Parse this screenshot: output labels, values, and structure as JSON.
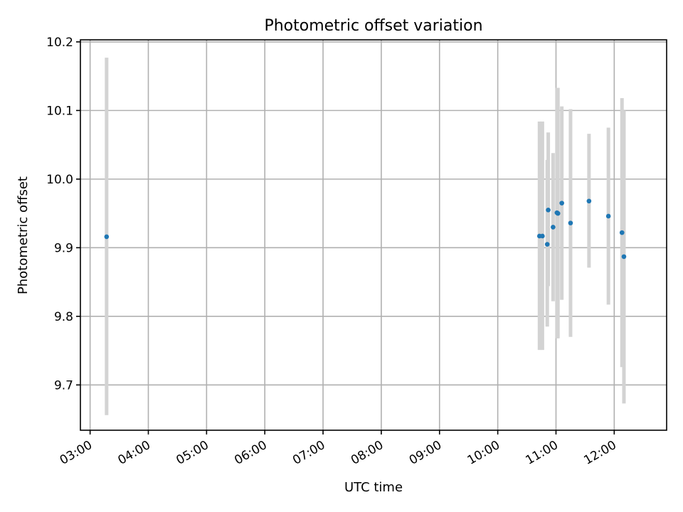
{
  "chart_data": {
    "type": "scatter",
    "title": "Photometric offset variation",
    "xlabel": "UTC time",
    "ylabel": "Photometric offset",
    "x_ticks": [
      "03:00",
      "04:00",
      "05:00",
      "06:00",
      "07:00",
      "08:00",
      "09:00",
      "10:00",
      "11:00",
      "12:00"
    ],
    "y_ticks": [
      "9.7",
      "9.8",
      "9.9",
      "10.0",
      "10.1",
      "10.2"
    ],
    "xlim": [
      "02:50",
      "12:54"
    ],
    "ylim": [
      9.634,
      10.203
    ],
    "grid": true,
    "colors": {
      "points": "#1f77b4",
      "errorbars": "#d3d3d3",
      "grid": "#b0b0b0"
    },
    "series": [
      {
        "points": [
          {
            "x": "03:17",
            "y": 9.916,
            "err": [
              9.656,
              10.177
            ]
          },
          {
            "x": "10:43",
            "y": 9.917,
            "err": [
              9.751,
              10.084
            ]
          },
          {
            "x": "10:46",
            "y": 9.917,
            "err": [
              9.751,
              10.084
            ]
          },
          {
            "x": "10:51",
            "y": 9.905,
            "err": [
              9.785,
              10.028
            ]
          },
          {
            "x": "10:52",
            "y": 9.955,
            "err": [
              9.844,
              10.068
            ]
          },
          {
            "x": "10:57",
            "y": 9.93,
            "err": [
              9.822,
              10.038
            ]
          },
          {
            "x": "11:01",
            "y": 9.951,
            "err": [
              9.768,
              10.133
            ]
          },
          {
            "x": "11:02",
            "y": 9.95,
            "err": [
              9.768,
              10.133
            ]
          },
          {
            "x": "11:06",
            "y": 9.965,
            "err": [
              9.824,
              10.106
            ]
          },
          {
            "x": "11:15",
            "y": 9.936,
            "err": [
              9.77,
              10.102
            ]
          },
          {
            "x": "11:34",
            "y": 9.968,
            "err": [
              9.871,
              10.066
            ]
          },
          {
            "x": "11:54",
            "y": 9.946,
            "err": [
              9.817,
              10.075
            ]
          },
          {
            "x": "12:08",
            "y": 9.922,
            "err": [
              9.726,
              10.118
            ]
          },
          {
            "x": "12:10",
            "y": 9.887,
            "err": [
              9.673,
              10.1
            ]
          }
        ]
      }
    ]
  }
}
